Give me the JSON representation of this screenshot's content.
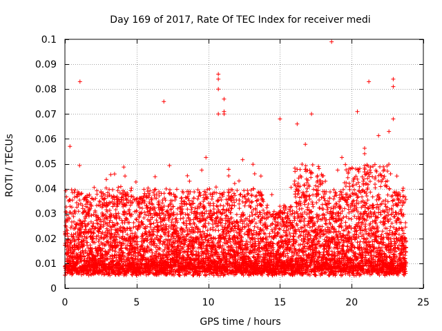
{
  "chart_data": {
    "type": "scatter",
    "title": "Day 169 of 2017, Rate Of TEC Index for receiver medi",
    "xlabel": "GPS time / hours",
    "ylabel": "ROTI / TECUs",
    "xlim": [
      0,
      25
    ],
    "ylim": [
      0,
      0.1
    ],
    "xticks": [
      0,
      5,
      10,
      15,
      20,
      25
    ],
    "xtick_labels": [
      "0",
      "5",
      "10",
      "15",
      "20",
      "25"
    ],
    "yticks": [
      0,
      0.01,
      0.02,
      0.03,
      0.04,
      0.05,
      0.06,
      0.07,
      0.08,
      0.09,
      0.1
    ],
    "ytick_labels": [
      "0",
      "0.01",
      "0.02",
      "0.03",
      "0.04",
      "0.05",
      "0.06",
      "0.07",
      "0.08",
      "0.09",
      "0.1"
    ],
    "grid": true,
    "marker": "+",
    "series_color": "#ff0000",
    "x_range_covered": [
      0,
      23.8
    ],
    "notable_points": [
      {
        "x": 0.35,
        "y": 0.057
      },
      {
        "x": 1.05,
        "y": 0.083
      },
      {
        "x": 6.9,
        "y": 0.075
      },
      {
        "x": 10.7,
        "y": 0.086
      },
      {
        "x": 10.7,
        "y": 0.084
      },
      {
        "x": 10.7,
        "y": 0.08
      },
      {
        "x": 10.7,
        "y": 0.07
      },
      {
        "x": 11.1,
        "y": 0.076
      },
      {
        "x": 11.1,
        "y": 0.071
      },
      {
        "x": 11.1,
        "y": 0.07
      },
      {
        "x": 15.0,
        "y": 0.068
      },
      {
        "x": 16.2,
        "y": 0.066
      },
      {
        "x": 17.2,
        "y": 0.07
      },
      {
        "x": 18.6,
        "y": 0.099
      },
      {
        "x": 20.4,
        "y": 0.071
      },
      {
        "x": 21.2,
        "y": 0.083
      },
      {
        "x": 22.9,
        "y": 0.084
      },
      {
        "x": 22.9,
        "y": 0.081
      },
      {
        "x": 22.9,
        "y": 0.068
      },
      {
        "x": 22.6,
        "y": 0.063
      }
    ]
  }
}
